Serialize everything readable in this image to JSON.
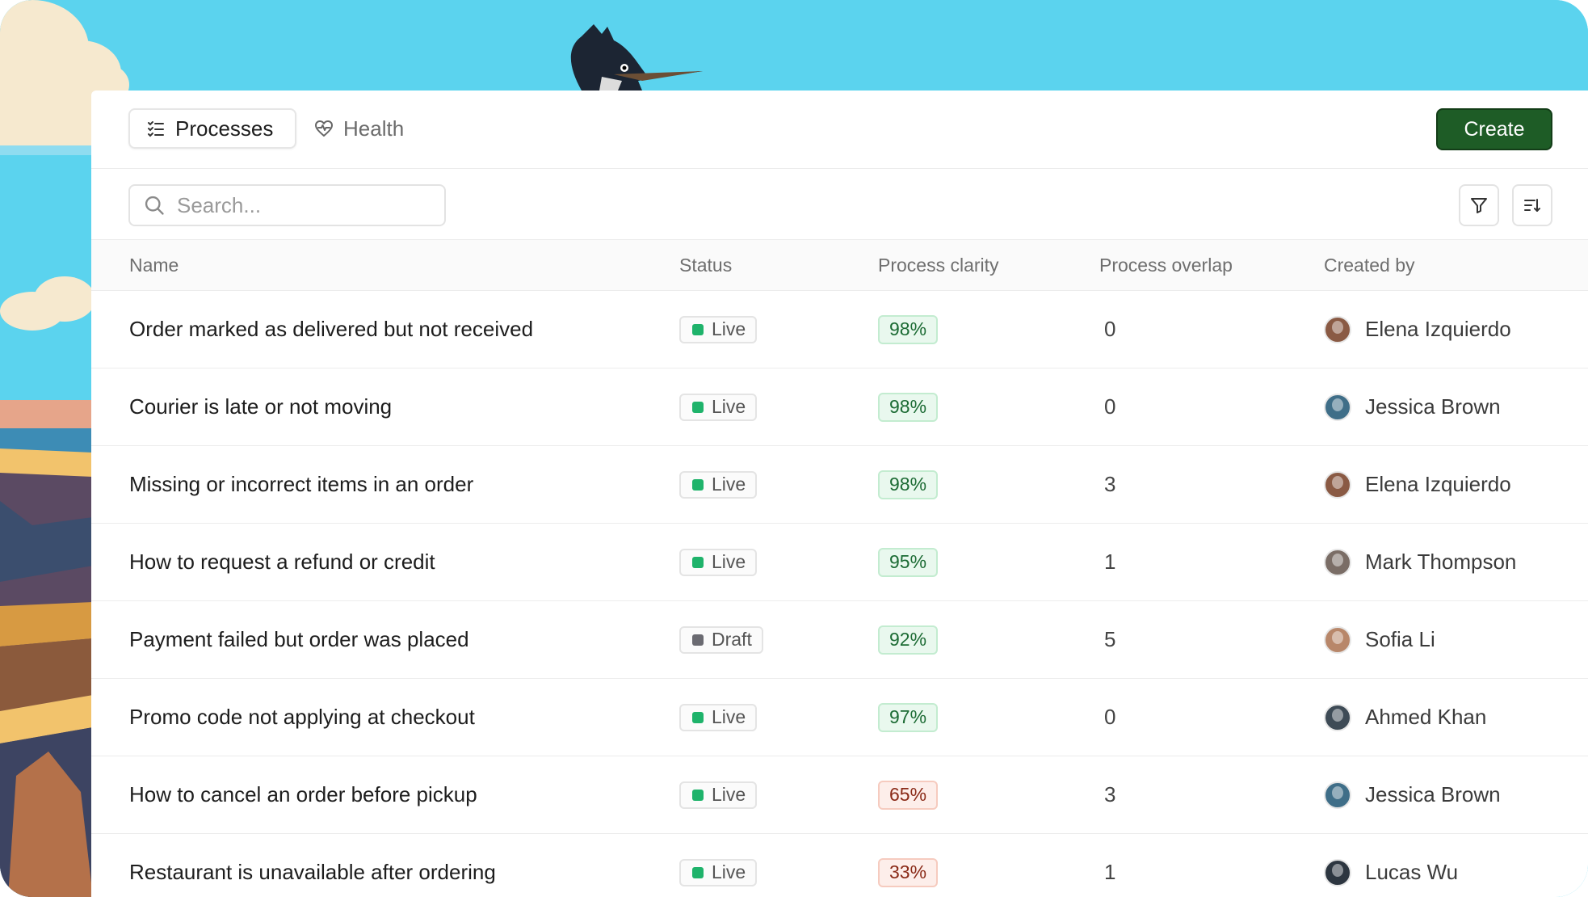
{
  "tabs": {
    "processes_label": "Processes",
    "health_label": "Health",
    "processes_icon": "list-checks-icon",
    "health_icon": "heart-pulse-icon"
  },
  "create_label": "Create",
  "search": {
    "placeholder": "Search...",
    "icon": "search-icon"
  },
  "toolbar": {
    "filter_icon": "filter-icon",
    "sort_icon": "sort-icon"
  },
  "colors": {
    "accent": "#1e5c26",
    "live": "#1fb36b",
    "draft": "#6b6b72",
    "good_bg": "#e9f8ee",
    "bad_bg": "#fdeeea"
  },
  "table": {
    "columns": {
      "name": "Name",
      "status": "Status",
      "clarity": "Process clarity",
      "overlap": "Process overlap",
      "created": "Created by"
    },
    "rows": [
      {
        "name": "Order marked as delivered but not received",
        "status": "Live",
        "clarity": "98%",
        "clarity_level": "good",
        "overlap": "0",
        "created_by": "Elena Izquierdo",
        "avatar_color": "#8a5a44"
      },
      {
        "name": "Courier is late or not moving",
        "status": "Live",
        "clarity": "98%",
        "clarity_level": "good",
        "overlap": "0",
        "created_by": "Jessica Brown",
        "avatar_color": "#3f6e88"
      },
      {
        "name": "Missing or incorrect items in an order",
        "status": "Live",
        "clarity": "98%",
        "clarity_level": "good",
        "overlap": "3",
        "created_by": "Elena Izquierdo",
        "avatar_color": "#8a5a44"
      },
      {
        "name": "How to request a refund or credit",
        "status": "Live",
        "clarity": "95%",
        "clarity_level": "good",
        "overlap": "1",
        "created_by": "Mark Thompson",
        "avatar_color": "#7a6d66"
      },
      {
        "name": "Payment failed but order was placed",
        "status": "Draft",
        "clarity": "92%",
        "clarity_level": "good",
        "overlap": "5",
        "created_by": "Sofia Li",
        "avatar_color": "#b8876a"
      },
      {
        "name": "Promo code not applying at checkout",
        "status": "Live",
        "clarity": "97%",
        "clarity_level": "good",
        "overlap": "0",
        "created_by": "Ahmed Khan",
        "avatar_color": "#3e4b56"
      },
      {
        "name": "How to cancel an order before pickup",
        "status": "Live",
        "clarity": "65%",
        "clarity_level": "bad",
        "overlap": "3",
        "created_by": "Jessica Brown",
        "avatar_color": "#3f6e88"
      },
      {
        "name": "Restaurant is unavailable after ordering",
        "status": "Live",
        "clarity": "33%",
        "clarity_level": "bad",
        "overlap": "1",
        "created_by": "Lucas Wu",
        "avatar_color": "#2d3640"
      }
    ]
  }
}
